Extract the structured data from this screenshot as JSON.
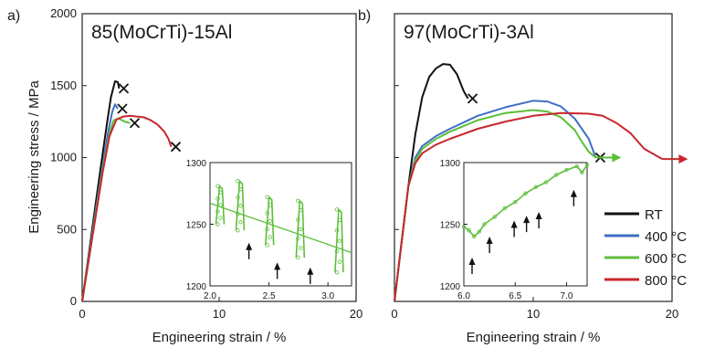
{
  "chart_data": [
    {
      "type": "line",
      "panel_label": "a)",
      "title": "85(MoCrTi)-15Al",
      "xlabel": "Engineering strain / %",
      "ylabel": "Engineering stress / MPa",
      "xlim": [
        0,
        20
      ],
      "ylim": [
        0,
        2000
      ],
      "xticks": [
        "0",
        "10",
        "20"
      ],
      "yticks": [
        "0",
        "500",
        "1000",
        "1500",
        "2000"
      ],
      "grid": false,
      "series": [
        {
          "name": "RT",
          "color": "#111111",
          "x": [
            0,
            0.5,
            1.0,
            1.5,
            1.8,
            2.1,
            2.4,
            2.6,
            2.7
          ],
          "y": [
            0,
            340,
            690,
            1030,
            1230,
            1420,
            1530,
            1525,
            1480
          ],
          "end_marker": "x"
        },
        {
          "name": "400 °C",
          "color": "#3f6fc6",
          "x": [
            0,
            0.5,
            1.0,
            1.5,
            1.9,
            2.2,
            2.4,
            2.6
          ],
          "y": [
            0,
            320,
            640,
            950,
            1180,
            1320,
            1370,
            1340
          ],
          "end_marker": "x"
        },
        {
          "name": "600 °C",
          "color": "#5cbf3a",
          "x": [
            0,
            0.5,
            1.0,
            1.5,
            2.0,
            2.3,
            2.7,
            3.1,
            3.5
          ],
          "y": [
            0,
            310,
            620,
            920,
            1170,
            1260,
            1270,
            1250,
            1240
          ],
          "end_marker": "x"
        },
        {
          "name": "800 °C",
          "color": "#c8272d",
          "x": [
            0,
            0.5,
            1.0,
            1.5,
            2.0,
            2.5,
            3.0,
            3.5,
            4.0,
            4.5,
            5.0,
            5.5,
            6.0,
            6.3,
            6.5
          ],
          "y": [
            0,
            300,
            600,
            900,
            1150,
            1265,
            1285,
            1290,
            1285,
            1280,
            1260,
            1230,
            1180,
            1130,
            1075
          ],
          "end_marker": "x"
        }
      ],
      "inset": {
        "xlim": [
          2.0,
          3.2
        ],
        "ylim": [
          1200,
          1300
        ],
        "xticks": [
          "2.0",
          "2.5",
          "3.0"
        ],
        "yticks": [
          "1200",
          "1250",
          "1300"
        ],
        "color": "#5cbf3a",
        "serrations": [
          {
            "x": 2.05,
            "low": 1250,
            "high": 1281
          },
          {
            "x": 2.22,
            "low": 1245,
            "high": 1285
          },
          {
            "x": 2.47,
            "low": 1233,
            "high": 1272
          },
          {
            "x": 2.73,
            "low": 1223,
            "high": 1269
          },
          {
            "x": 3.06,
            "low": 1211,
            "high": 1262
          }
        ],
        "trend": {
          "x": [
            2.0,
            3.2
          ],
          "y": [
            1267,
            1227
          ]
        },
        "arrows": [
          {
            "x": 2.33,
            "y": 1232
          },
          {
            "x": 2.57,
            "y": 1216
          },
          {
            "x": 2.85,
            "y": 1212
          }
        ]
      }
    },
    {
      "type": "line",
      "panel_label": "b)",
      "title": "97(MoCrTi)-3Al",
      "xlabel": "Engineering strain / %",
      "ylabel": "",
      "xlim": [
        0,
        20
      ],
      "ylim": [
        0,
        2000
      ],
      "xticks": [
        "0",
        "10",
        "20"
      ],
      "grid": false,
      "series": [
        {
          "name": "RT",
          "color": "#111111",
          "x": [
            0,
            0.5,
            1.0,
            1.5,
            2.0,
            2.5,
            3.0,
            3.5,
            4.0,
            4.5,
            5.0,
            5.3
          ],
          "y": [
            0,
            400,
            800,
            1160,
            1420,
            1560,
            1620,
            1650,
            1645,
            1580,
            1460,
            1410
          ],
          "end_marker": "x"
        },
        {
          "name": "400 °C",
          "color": "#3f6fc6",
          "x": [
            0,
            0.5,
            1.0,
            1.5,
            2.0,
            3.0,
            4.0,
            6.0,
            8.0,
            10.0,
            11.0,
            12.0,
            13.0,
            14.0,
            14.5
          ],
          "y": [
            0,
            400,
            800,
            1000,
            1080,
            1150,
            1200,
            1290,
            1350,
            1395,
            1390,
            1355,
            1270,
            1130,
            1000
          ],
          "end_marker": "x"
        },
        {
          "name": "600 °C",
          "color": "#5cbf3a",
          "x": [
            0,
            0.5,
            1.0,
            1.5,
            2.0,
            3.0,
            4.0,
            6.0,
            8.0,
            10.0,
            11.0,
            12.0,
            13.0,
            13.5,
            14.0,
            14.5
          ],
          "y": [
            0,
            400,
            800,
            980,
            1060,
            1130,
            1180,
            1260,
            1310,
            1330,
            1320,
            1280,
            1190,
            1110,
            1040,
            1000
          ],
          "end_marker": "arrow"
        },
        {
          "name": "800 °C",
          "color": "#c8272d",
          "x": [
            0,
            0.5,
            1.0,
            1.5,
            2.0,
            3.0,
            4.0,
            6.0,
            8.0,
            10.0,
            12.0,
            14.0,
            15.0,
            16.0,
            17.0,
            18.0,
            19.3
          ],
          "y": [
            0,
            400,
            800,
            960,
            1030,
            1090,
            1130,
            1200,
            1250,
            1290,
            1310,
            1305,
            1290,
            1240,
            1170,
            1060,
            990
          ],
          "end_marker": "arrow"
        }
      ],
      "inset": {
        "xlim": [
          6.0,
          7.2
        ],
        "ylim": [
          1200,
          1300
        ],
        "xticks": [
          "6.0",
          "6.5",
          "7.0"
        ],
        "yticks": [
          "1200",
          "1250",
          "1300"
        ],
        "color": "#5cbf3a",
        "x": [
          6.0,
          6.05,
          6.1,
          6.15,
          6.2,
          6.3,
          6.4,
          6.5,
          6.6,
          6.7,
          6.8,
          6.9,
          7.0,
          7.1,
          7.15,
          7.2
        ],
        "y": [
          1248,
          1245,
          1240,
          1244,
          1250,
          1256,
          1263,
          1268,
          1275,
          1280,
          1284,
          1290,
          1294,
          1297,
          1292,
          1298
        ],
        "arrows": [
          {
            "x": 6.08,
            "y": 1220
          },
          {
            "x": 6.25,
            "y": 1237
          },
          {
            "x": 6.49,
            "y": 1250
          },
          {
            "x": 6.61,
            "y": 1254
          },
          {
            "x": 6.73,
            "y": 1257
          },
          {
            "x": 7.07,
            "y": 1275
          }
        ]
      }
    }
  ]
}
